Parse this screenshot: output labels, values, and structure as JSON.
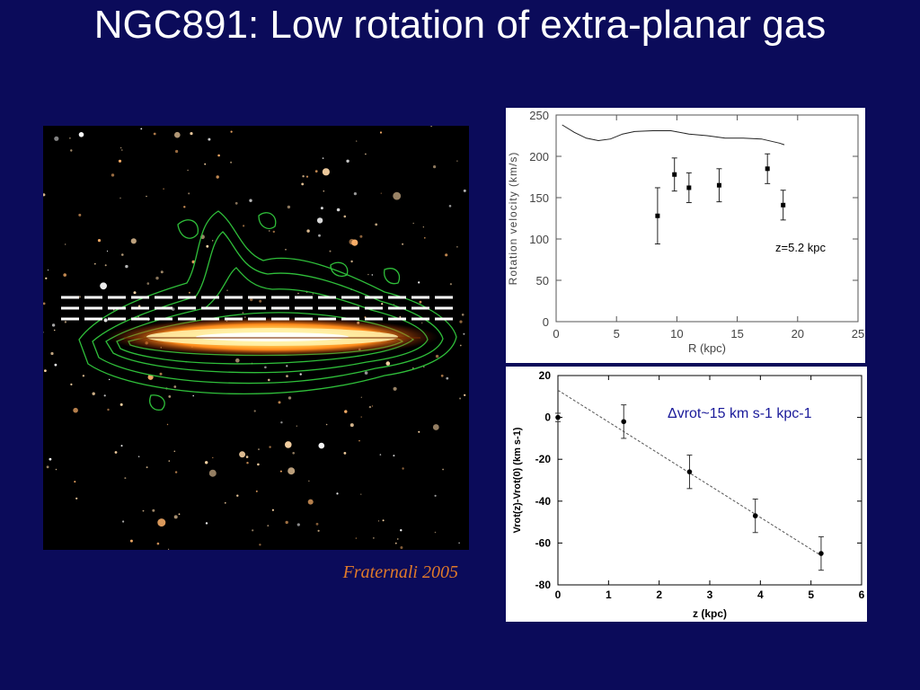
{
  "slide": {
    "title": "NGC891: Low rotation of extra-planar gas",
    "citation": "Fraternali 2005",
    "image_description_icon": "galaxy-hi-contour-image"
  },
  "chart_data": [
    {
      "type": "scatter",
      "xlabel": "R (kpc)",
      "ylabel": "Rotation velocity (km/s)",
      "xlim": [
        0,
        25
      ],
      "ylim": [
        0,
        250
      ],
      "xticks": [
        0,
        5,
        10,
        15,
        20,
        25
      ],
      "yticks": [
        0,
        50,
        100,
        150,
        200,
        250
      ],
      "annotation": "z=5.2 kpc",
      "points": [
        {
          "x": 8.4,
          "y": 128,
          "err": 34
        },
        {
          "x": 9.8,
          "y": 178,
          "err": 20
        },
        {
          "x": 11.0,
          "y": 162,
          "err": 18
        },
        {
          "x": 13.5,
          "y": 165,
          "err": 20
        },
        {
          "x": 17.5,
          "y": 185,
          "err": 18
        },
        {
          "x": 18.8,
          "y": 141,
          "err": 18
        }
      ],
      "curve": [
        {
          "x": 0.5,
          "y": 238
        },
        {
          "x": 1.5,
          "y": 229
        },
        {
          "x": 2.5,
          "y": 222
        },
        {
          "x": 3.5,
          "y": 219
        },
        {
          "x": 4.5,
          "y": 221
        },
        {
          "x": 5.5,
          "y": 227
        },
        {
          "x": 6.5,
          "y": 230
        },
        {
          "x": 8.0,
          "y": 231
        },
        {
          "x": 9.5,
          "y": 231
        },
        {
          "x": 11.0,
          "y": 227
        },
        {
          "x": 12.5,
          "y": 225
        },
        {
          "x": 14.0,
          "y": 222
        },
        {
          "x": 15.5,
          "y": 222
        },
        {
          "x": 17.0,
          "y": 221
        },
        {
          "x": 18.5,
          "y": 216
        },
        {
          "x": 18.9,
          "y": 214
        }
      ]
    },
    {
      "type": "scatter",
      "xlabel": "z (kpc)",
      "ylabel": "Vrot(z)-Vrot(0) (km s-1)",
      "xlim": [
        0,
        6
      ],
      "ylim": [
        -80,
        20
      ],
      "xticks": [
        0,
        1,
        2,
        3,
        4,
        5,
        6
      ],
      "yticks": [
        20,
        0,
        -20,
        -40,
        -60,
        -80
      ],
      "annotation": "Δvrot~15 km s-1 kpc-1",
      "points": [
        {
          "x": 0.0,
          "y": 0,
          "err": 2
        },
        {
          "x": 1.3,
          "y": -2,
          "err": 8
        },
        {
          "x": 2.6,
          "y": -26,
          "err": 8
        },
        {
          "x": 3.9,
          "y": -47,
          "err": 8
        },
        {
          "x": 5.2,
          "y": -65,
          "err": 8
        }
      ],
      "fit_line": [
        {
          "x": 0,
          "y": 13
        },
        {
          "x": 5.2,
          "y": -66
        }
      ]
    }
  ]
}
